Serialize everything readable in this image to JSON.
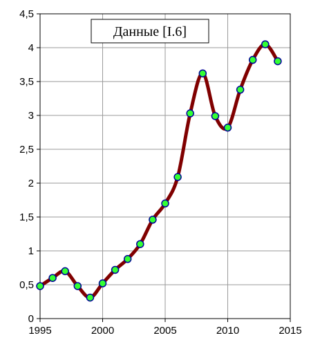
{
  "chart_data": {
    "type": "line",
    "title": "Данные [I.6]",
    "xlabel": "",
    "ylabel": "",
    "xlim": [
      1995,
      2015
    ],
    "ylim": [
      0,
      4.5
    ],
    "x_ticks": [
      1995,
      2000,
      2005,
      2010,
      2015
    ],
    "y_ticks": [
      0,
      0.5,
      1,
      1.5,
      2,
      2.5,
      3,
      3.5,
      4,
      4.5
    ],
    "x_tick_labels": [
      "1995",
      "2000",
      "2005",
      "2010",
      "2015"
    ],
    "y_tick_labels": [
      "0",
      "0,5",
      "1",
      "1,5",
      "2",
      "2,5",
      "3",
      "3,5",
      "4",
      "4,5"
    ],
    "grid": true,
    "legend": false,
    "series": [
      {
        "x": [
          1995,
          1996,
          1997,
          1998,
          1999,
          2000,
          2001,
          2002,
          2003,
          2004,
          2005,
          2006,
          2007,
          2008,
          2009,
          2010,
          2011,
          2012,
          2013,
          2014
        ],
        "values": [
          0.48,
          0.6,
          0.7,
          0.48,
          0.31,
          0.52,
          0.72,
          0.88,
          1.1,
          1.46,
          1.7,
          2.09,
          3.03,
          3.62,
          2.99,
          2.82,
          3.38,
          3.82,
          4.05,
          3.8
        ],
        "line_color": "#800000",
        "marker_fill": "#33ff33",
        "marker_edge": "#000099"
      }
    ]
  }
}
